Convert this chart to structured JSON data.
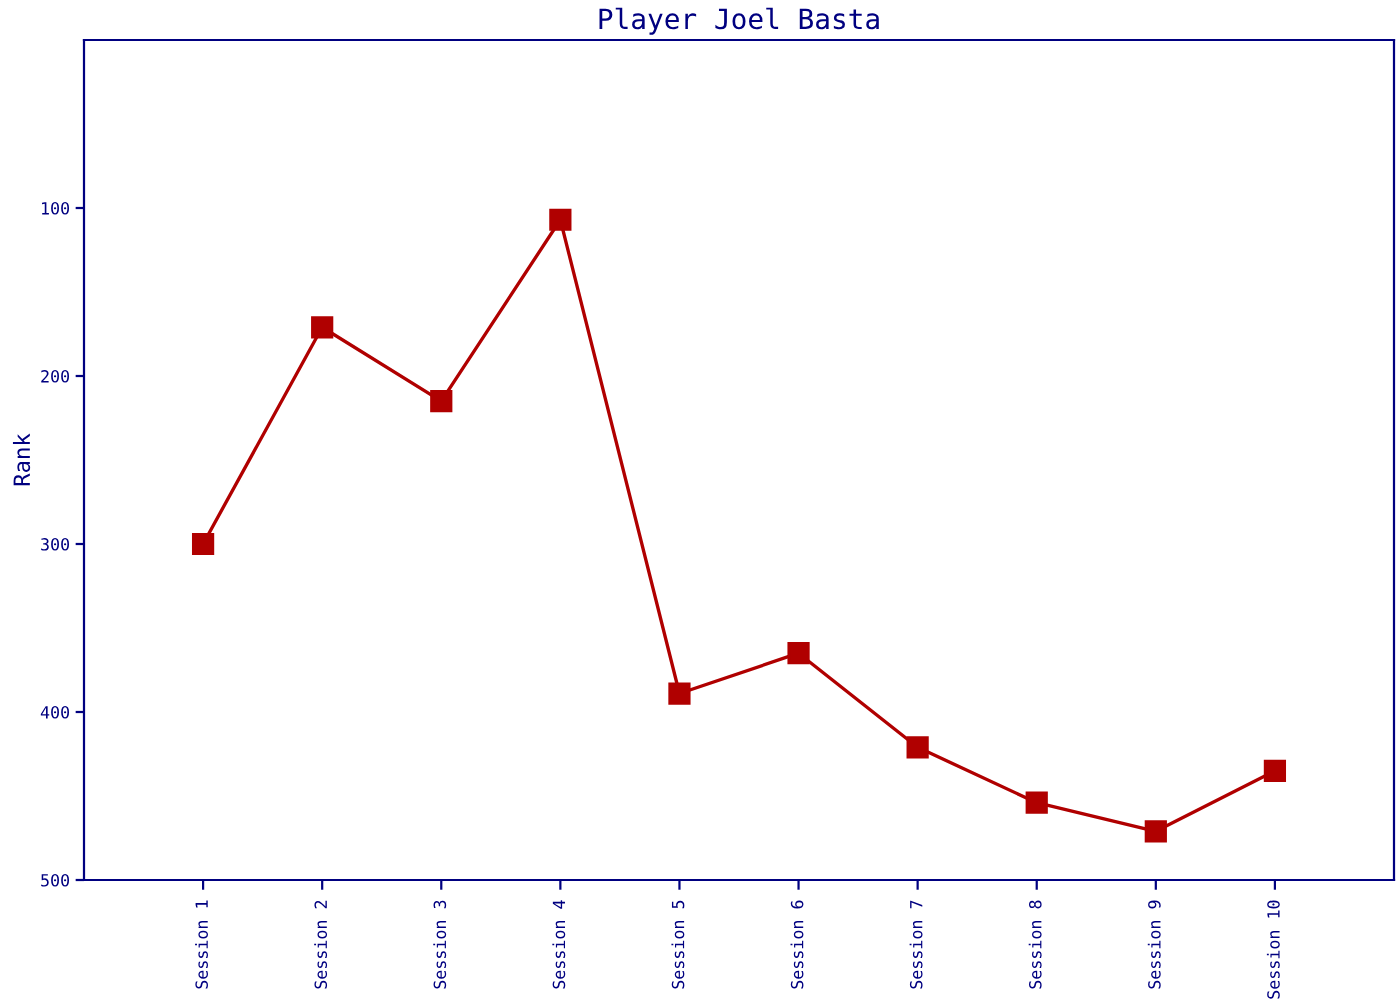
{
  "chart_data": {
    "type": "line",
    "title": "Player Joel Basta",
    "ylabel": "Rank",
    "categories": [
      "Session 1",
      "Session 2",
      "Session 3",
      "Session 4",
      "Session 5",
      "Session 6",
      "Session 7",
      "Session 8",
      "Session 9",
      "Session 10"
    ],
    "series": [
      {
        "color": "#b00000",
        "values": [
          300,
          171,
          215,
          107,
          389,
          365,
          421,
          454,
          471,
          435
        ]
      }
    ],
    "ylim": [
      500,
      0
    ],
    "yticks": [
      100,
      200,
      300,
      400,
      500
    ],
    "grid": false,
    "legend": false,
    "marker": "square",
    "line_style": "solid"
  }
}
